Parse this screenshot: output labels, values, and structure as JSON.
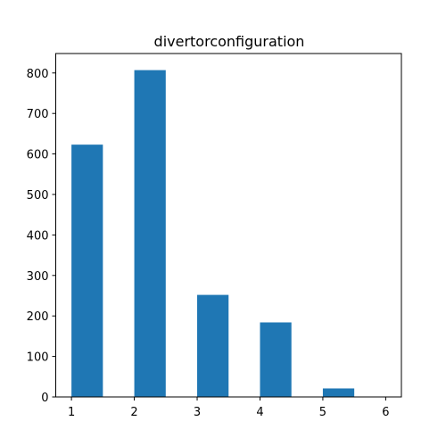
{
  "chart_data": {
    "type": "bar",
    "title": "divertorconfiguration",
    "xlabel": "",
    "ylabel": "",
    "bin_edges": [
      1.0,
      1.5,
      2.0,
      2.5,
      3.0,
      3.5,
      4.0,
      4.5,
      5.0,
      5.5,
      6.0
    ],
    "values": [
      623,
      0,
      807,
      0,
      252,
      0,
      184,
      0,
      21,
      0
    ],
    "xlim": [
      0.75,
      6.25
    ],
    "ylim": [
      0,
      848
    ],
    "xticks": [
      1,
      2,
      3,
      4,
      5,
      6
    ],
    "yticks": [
      0,
      100,
      200,
      300,
      400,
      500,
      600,
      700,
      800
    ],
    "grid": false,
    "bar_color": "#1f77b4"
  }
}
